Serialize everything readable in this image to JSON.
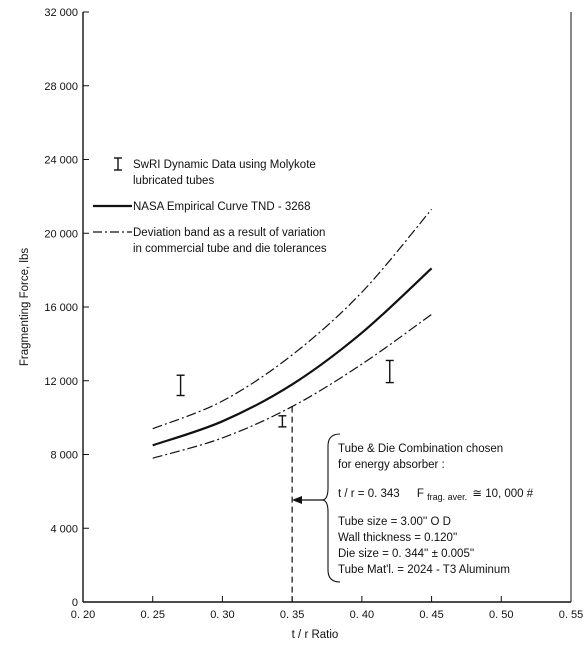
{
  "chart_data": {
    "type": "line",
    "xlabel": "t / r   Ratio",
    "ylabel": "Fragmenting Force,  lbs",
    "xlim": [
      0.2,
      0.55
    ],
    "ylim": [
      0,
      32000
    ],
    "x_ticks": [
      "0. 20",
      "0. 25",
      "0. 30",
      "0. 35",
      "0. 40",
      "0. 45",
      "0. 50",
      "0. 55"
    ],
    "y_ticks": [
      "0",
      "4 000",
      "8 000",
      "12 000",
      "16 000",
      "20 000",
      "24 000",
      "28 000",
      "32 000"
    ],
    "grid": false,
    "series": [
      {
        "name": "NASA Empirical Curve TND - 3268",
        "style": "solid",
        "x": [
          0.25,
          0.3,
          0.35,
          0.4,
          0.45
        ],
        "y": [
          8500,
          9800,
          11800,
          14600,
          18100
        ]
      },
      {
        "name": "Deviation band as a result of variation in commercial tube and die tolerances",
        "style": "dash-dot",
        "x": [
          0.25,
          0.3,
          0.35,
          0.4,
          0.45
        ],
        "y": [
          9400,
          10900,
          13400,
          16800,
          21300
        ]
      },
      {
        "name": "",
        "style": "dash-dot",
        "x": [
          0.25,
          0.3,
          0.35,
          0.4,
          0.45
        ],
        "y": [
          7800,
          8900,
          10600,
          12900,
          15600
        ]
      }
    ],
    "error_bars": {
      "name": "SwRI Dynamic Data using Molykote lubricated tubes",
      "points": [
        {
          "x": 0.27,
          "low": 11200,
          "high": 12300
        },
        {
          "x": 0.343,
          "low": 9500,
          "high": 10100
        },
        {
          "x": 0.42,
          "low": 11900,
          "high": 13100
        }
      ]
    },
    "marker_line": {
      "x": 0.35,
      "y_top": 10600
    }
  },
  "legend": {
    "errbar_line1": "SwRI  Dynamic Data using Molykote",
    "errbar_line2": "lubricated tubes",
    "solid": "NASA Empirical Curve  TND - 3268",
    "dash_line1": "Deviation band as a result of variation",
    "dash_line2": "in commercial tube and die tolerances"
  },
  "annotation": {
    "line1": "Tube & Die Combination chosen",
    "line2": "for energy absorber :",
    "line3a": "t / r = 0. 343",
    "line3b": "F",
    "line3c": "frag. aver.",
    "line3d": "≅ 10, 000 #",
    "line4": "Tube size = 3.00'' O D",
    "line5": "Wall thickness = 0.120''",
    "line6": "Die size = 0. 344'' ± 0.005''",
    "line7": "Tube Mat'l. = 2024 - T3 Aluminum"
  },
  "colors": {
    "ink": "#111111",
    "background": "#ffffff"
  }
}
